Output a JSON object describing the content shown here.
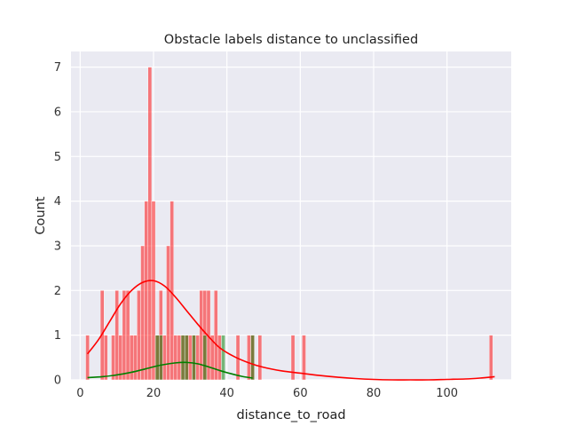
{
  "chart_data": {
    "type": "bar",
    "title": "Obstacle labels distance to unclassified",
    "xlabel": "distance_to_road",
    "ylabel": "Count",
    "xlim": [
      -2.5,
      117.5
    ],
    "ylim": [
      0,
      7.35
    ],
    "x_ticks": [
      0,
      20,
      40,
      60,
      80,
      100
    ],
    "y_ticks": [
      0,
      1,
      2,
      3,
      4,
      5,
      6,
      7
    ],
    "grid": true,
    "background": "#EAEAF2",
    "bin_width": 1,
    "series": [
      {
        "color": "#FF0000",
        "bins": [
          {
            "x": 2,
            "count": 1
          },
          {
            "x": 6,
            "count": 2
          },
          {
            "x": 7,
            "count": 1
          },
          {
            "x": 9,
            "count": 1
          },
          {
            "x": 10,
            "count": 2
          },
          {
            "x": 11,
            "count": 1
          },
          {
            "x": 12,
            "count": 2
          },
          {
            "x": 13,
            "count": 2
          },
          {
            "x": 14,
            "count": 1
          },
          {
            "x": 15,
            "count": 1
          },
          {
            "x": 16,
            "count": 2
          },
          {
            "x": 17,
            "count": 3
          },
          {
            "x": 18,
            "count": 4
          },
          {
            "x": 19,
            "count": 7
          },
          {
            "x": 20,
            "count": 4
          },
          {
            "x": 21,
            "count": 1
          },
          {
            "x": 22,
            "count": 2
          },
          {
            "x": 23,
            "count": 1
          },
          {
            "x": 24,
            "count": 3
          },
          {
            "x": 25,
            "count": 4
          },
          {
            "x": 26,
            "count": 1
          },
          {
            "x": 27,
            "count": 1
          },
          {
            "x": 28,
            "count": 1
          },
          {
            "x": 29,
            "count": 1
          },
          {
            "x": 30,
            "count": 1
          },
          {
            "x": 31,
            "count": 1
          },
          {
            "x": 32,
            "count": 1
          },
          {
            "x": 33,
            "count": 2
          },
          {
            "x": 34,
            "count": 2
          },
          {
            "x": 35,
            "count": 2
          },
          {
            "x": 36,
            "count": 1
          },
          {
            "x": 37,
            "count": 2
          },
          {
            "x": 38,
            "count": 1
          },
          {
            "x": 43,
            "count": 1
          },
          {
            "x": 46,
            "count": 1
          },
          {
            "x": 47,
            "count": 1
          },
          {
            "x": 49,
            "count": 1
          },
          {
            "x": 58,
            "count": 1
          },
          {
            "x": 61,
            "count": 1
          },
          {
            "x": 112,
            "count": 1
          }
        ],
        "kde": [
          [
            2,
            0.58
          ],
          [
            5,
            0.9
          ],
          [
            8,
            1.3
          ],
          [
            11,
            1.7
          ],
          [
            14,
            2.0
          ],
          [
            17,
            2.18
          ],
          [
            20,
            2.22
          ],
          [
            23,
            2.1
          ],
          [
            26,
            1.85
          ],
          [
            29,
            1.55
          ],
          [
            32,
            1.25
          ],
          [
            35,
            0.97
          ],
          [
            38,
            0.72
          ],
          [
            42,
            0.52
          ],
          [
            46,
            0.38
          ],
          [
            50,
            0.28
          ],
          [
            55,
            0.2
          ],
          [
            60,
            0.15
          ],
          [
            65,
            0.1
          ],
          [
            70,
            0.06
          ],
          [
            75,
            0.03
          ],
          [
            80,
            0.01
          ],
          [
            85,
            0.0
          ],
          [
            90,
            0.0
          ],
          [
            95,
            0.0
          ],
          [
            100,
            0.01
          ],
          [
            105,
            0.02
          ],
          [
            109,
            0.04
          ],
          [
            113,
            0.07
          ]
        ]
      },
      {
        "color": "#008000",
        "bins": [
          {
            "x": 21,
            "count": 1
          },
          {
            "x": 22,
            "count": 1
          },
          {
            "x": 28,
            "count": 1
          },
          {
            "x": 29,
            "count": 1
          },
          {
            "x": 31,
            "count": 1
          },
          {
            "x": 34,
            "count": 1
          },
          {
            "x": 39,
            "count": 1
          },
          {
            "x": 47,
            "count": 1
          }
        ],
        "kde": [
          [
            2,
            0.05
          ],
          [
            6,
            0.07
          ],
          [
            10,
            0.11
          ],
          [
            14,
            0.17
          ],
          [
            18,
            0.25
          ],
          [
            22,
            0.33
          ],
          [
            26,
            0.38
          ],
          [
            29,
            0.39
          ],
          [
            32,
            0.36
          ],
          [
            35,
            0.29
          ],
          [
            38,
            0.21
          ],
          [
            41,
            0.14
          ],
          [
            44,
            0.08
          ],
          [
            47,
            0.04
          ]
        ]
      }
    ]
  }
}
